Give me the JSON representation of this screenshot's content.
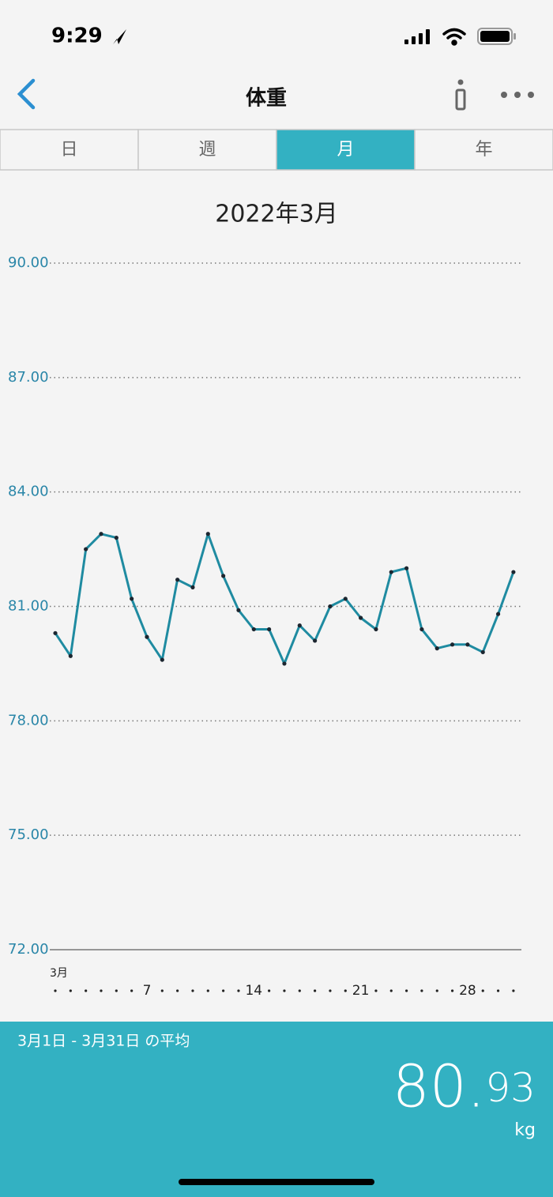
{
  "status_bar": {
    "time": "9:29"
  },
  "nav": {
    "title": "体重"
  },
  "tabs": {
    "items": [
      "日",
      "週",
      "月",
      "年"
    ],
    "selected": 2
  },
  "chart_data": {
    "type": "line",
    "title": "2022年3月",
    "x_month_label": "3月",
    "categories": [
      null,
      null,
      null,
      null,
      null,
      null,
      "7",
      null,
      null,
      null,
      null,
      null,
      null,
      "14",
      null,
      null,
      null,
      null,
      null,
      null,
      "21",
      null,
      null,
      null,
      null,
      null,
      null,
      "28",
      null,
      null,
      null
    ],
    "values": [
      80.3,
      79.7,
      82.5,
      82.9,
      82.8,
      81.2,
      80.2,
      79.6,
      81.7,
      81.5,
      82.9,
      81.8,
      80.9,
      80.4,
      80.4,
      79.5,
      80.5,
      80.1,
      81.0,
      81.2,
      80.7,
      80.4,
      81.9,
      82.0,
      80.4,
      79.9,
      80.0,
      80.0,
      79.8,
      80.8,
      81.9
    ],
    "color": "#1f8ba1",
    "marker_color": "#1c2630",
    "ylim": [
      72,
      90
    ],
    "yticks": [
      {
        "value": 72,
        "label": "72.00"
      },
      {
        "value": 75,
        "label": "75.00"
      },
      {
        "value": 78,
        "label": "78.00"
      },
      {
        "value": 81,
        "label": "81.00"
      },
      {
        "value": 84,
        "label": "84.00"
      },
      {
        "value": 87,
        "label": "87.00"
      },
      {
        "value": 90,
        "label": "90.00"
      }
    ],
    "grid": true
  },
  "summary": {
    "label": "3月1日 - 3月31日 の平均",
    "value": 80.93,
    "unit": "kg"
  }
}
